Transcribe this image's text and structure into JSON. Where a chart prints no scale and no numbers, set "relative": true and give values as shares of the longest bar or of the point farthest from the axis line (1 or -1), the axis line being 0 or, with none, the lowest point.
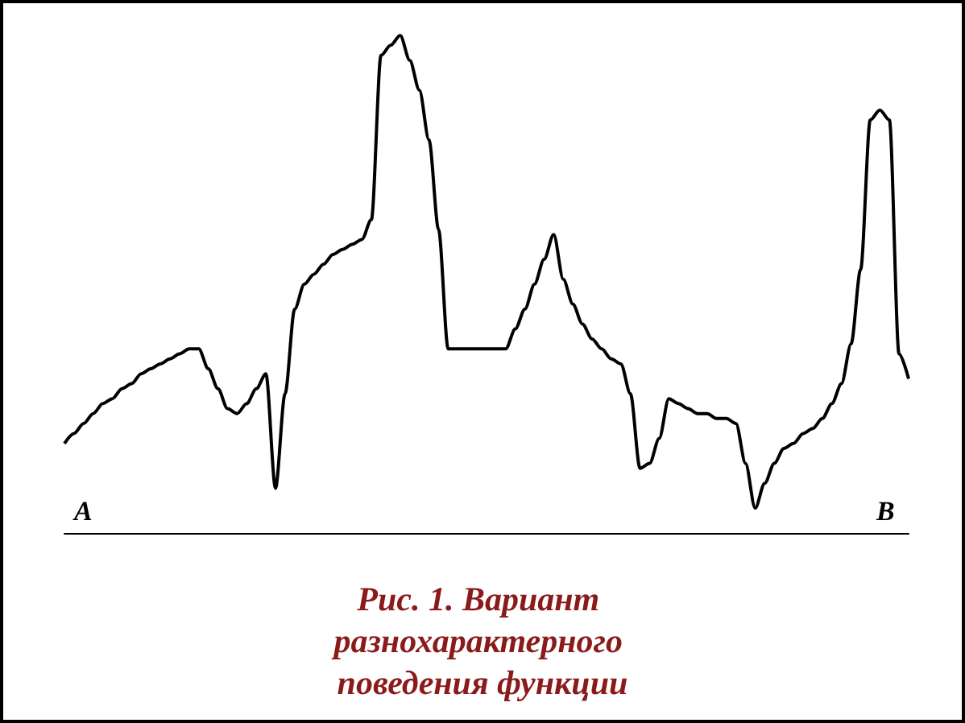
{
  "chart_data": {
    "type": "line",
    "relative": true,
    "title": "Рис. 1. Вариант разнохарактерного поведения функции",
    "annotations": [
      "A",
      "B"
    ],
    "color": "#000000",
    "marker": "none",
    "categories": [
      null,
      null,
      null,
      null,
      null,
      null,
      null,
      null,
      null,
      null,
      null,
      null,
      null,
      null,
      null,
      null,
      null,
      null,
      null,
      null,
      null,
      null,
      null,
      null,
      null,
      null,
      null,
      null,
      null,
      null,
      null,
      null,
      null,
      null,
      null,
      null,
      null,
      null,
      null,
      null,
      null,
      null,
      null,
      null,
      null,
      null,
      null,
      null,
      null,
      null,
      null,
      null,
      null,
      null,
      null,
      null,
      null,
      null,
      null,
      null,
      null,
      null,
      null,
      null,
      null,
      null,
      null,
      null,
      null,
      null,
      null,
      null,
      null,
      null,
      null,
      null,
      null,
      null,
      null,
      null,
      null,
      null,
      null,
      null,
      null,
      null,
      null,
      null,
      null
    ],
    "values": [
      0.18,
      0.2,
      0.22,
      0.24,
      0.26,
      0.27,
      0.29,
      0.3,
      0.32,
      0.33,
      0.34,
      0.35,
      0.36,
      0.37,
      0.37,
      0.33,
      0.29,
      0.25,
      0.24,
      0.26,
      0.29,
      0.32,
      0.09,
      0.28,
      0.45,
      0.5,
      0.52,
      0.54,
      0.56,
      0.57,
      0.58,
      0.59,
      0.63,
      0.96,
      0.98,
      1,
      0.95,
      0.89,
      0.79,
      0.61,
      0.37,
      0.37,
      0.37,
      0.37,
      0.37,
      0.37,
      0.37,
      0.41,
      0.45,
      0.5,
      0.55,
      0.6,
      0.51,
      0.46,
      0.42,
      0.39,
      0.37,
      0.35,
      0.34,
      0.28,
      0.13,
      0.14,
      0.19,
      0.27,
      0.26,
      0.25,
      0.24,
      0.24,
      0.23,
      0.23,
      0.22,
      0.14,
      0.05,
      0.1,
      0.14,
      0.17,
      0.18,
      0.2,
      0.21,
      0.23,
      0.26,
      0.3,
      0.38,
      0.53,
      0.83,
      0.85,
      0.83,
      0.36,
      0.31
    ]
  }
}
